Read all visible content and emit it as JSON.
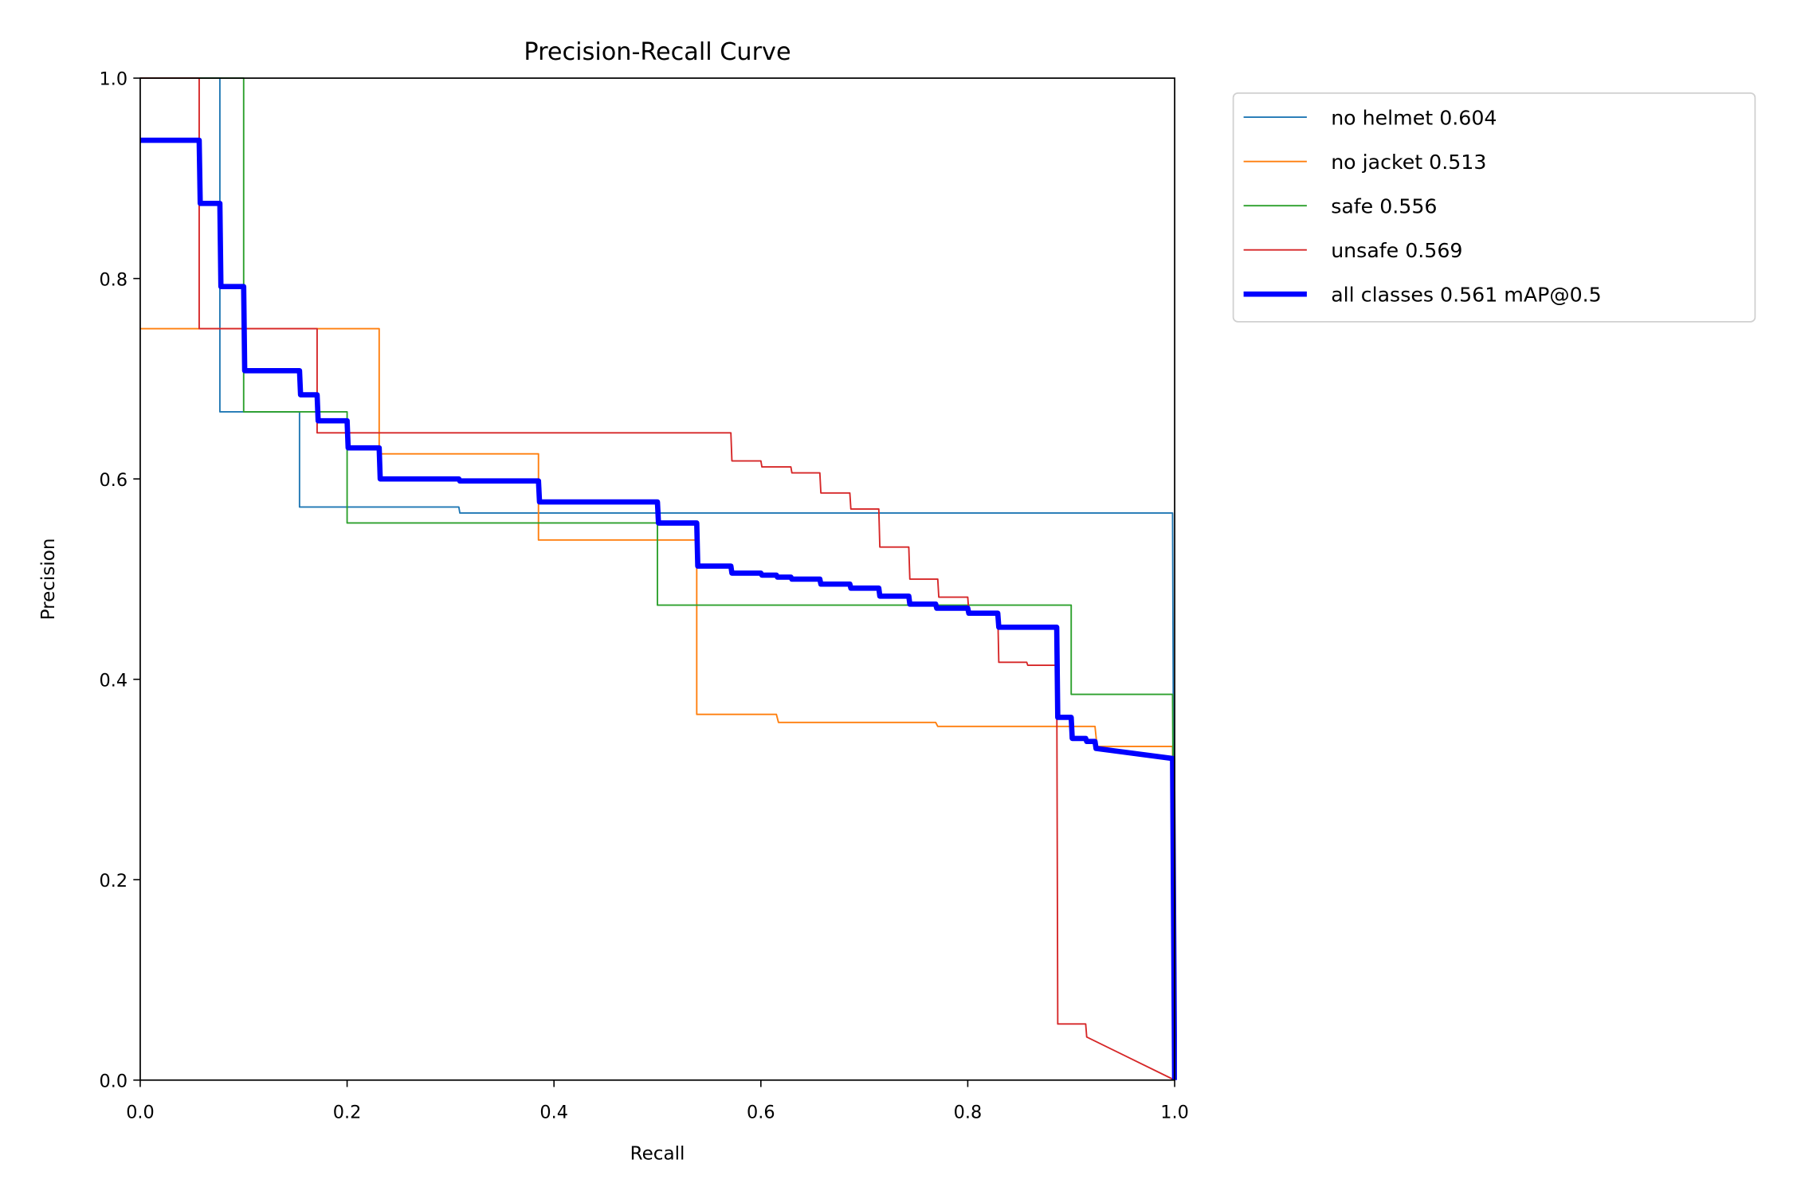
{
  "chart_data": {
    "type": "line",
    "title": "Precision-Recall Curve",
    "xlabel": "Recall",
    "ylabel": "Precision",
    "xlim": [
      0,
      1
    ],
    "ylim": [
      0,
      1
    ],
    "xticks": [
      "0.0",
      "0.2",
      "0.4",
      "0.6",
      "0.8",
      "1.0"
    ],
    "yticks": [
      "0.0",
      "0.2",
      "0.4",
      "0.6",
      "0.8",
      "1.0"
    ],
    "grid": false,
    "legend_position": "outside-top-right",
    "series": [
      {
        "name": "no helmet 0.604",
        "color": "#1f77b4",
        "bold": false,
        "points": [
          [
            0,
            1
          ],
          [
            0.077,
            1
          ],
          [
            0.077,
            0.667
          ],
          [
            0.154,
            0.667
          ],
          [
            0.154,
            0.572
          ],
          [
            0.308,
            0.572
          ],
          [
            0.309,
            0.566
          ],
          [
            0.998,
            0.566
          ],
          [
            1,
            0
          ]
        ]
      },
      {
        "name": "no jacket 0.513",
        "color": "#ff7f0e",
        "bold": false,
        "points": [
          [
            0,
            0.75
          ],
          [
            0.231,
            0.75
          ],
          [
            0.231,
            0.625
          ],
          [
            0.385,
            0.625
          ],
          [
            0.385,
            0.539
          ],
          [
            0.538,
            0.539
          ],
          [
            0.538,
            0.365
          ],
          [
            0.615,
            0.365
          ],
          [
            0.617,
            0.357
          ],
          [
            0.769,
            0.357
          ],
          [
            0.771,
            0.353
          ],
          [
            0.923,
            0.353
          ],
          [
            0.925,
            0.333
          ],
          [
            0.998,
            0.333
          ],
          [
            1,
            0
          ]
        ]
      },
      {
        "name": "safe 0.556",
        "color": "#2ca02c",
        "bold": false,
        "points": [
          [
            0,
            1
          ],
          [
            0.1,
            1
          ],
          [
            0.1,
            0.667
          ],
          [
            0.2,
            0.667
          ],
          [
            0.2,
            0.556
          ],
          [
            0.5,
            0.556
          ],
          [
            0.5,
            0.474
          ],
          [
            0.9,
            0.474
          ],
          [
            0.9,
            0.385
          ],
          [
            0.998,
            0.385
          ],
          [
            1,
            0
          ]
        ]
      },
      {
        "name": "unsafe 0.569",
        "color": "#d62728",
        "bold": false,
        "points": [
          [
            0,
            1
          ],
          [
            0.057,
            1
          ],
          [
            0.057,
            0.75
          ],
          [
            0.171,
            0.75
          ],
          [
            0.171,
            0.646
          ],
          [
            0.571,
            0.646
          ],
          [
            0.572,
            0.618
          ],
          [
            0.6,
            0.618
          ],
          [
            0.601,
            0.612
          ],
          [
            0.629,
            0.612
          ],
          [
            0.63,
            0.606
          ],
          [
            0.657,
            0.606
          ],
          [
            0.658,
            0.586
          ],
          [
            0.686,
            0.586
          ],
          [
            0.687,
            0.57
          ],
          [
            0.714,
            0.57
          ],
          [
            0.715,
            0.532
          ],
          [
            0.743,
            0.532
          ],
          [
            0.744,
            0.5
          ],
          [
            0.771,
            0.5
          ],
          [
            0.772,
            0.482
          ],
          [
            0.8,
            0.482
          ],
          [
            0.801,
            0.467
          ],
          [
            0.829,
            0.467
          ],
          [
            0.83,
            0.417
          ],
          [
            0.857,
            0.417
          ],
          [
            0.858,
            0.414
          ],
          [
            0.886,
            0.414
          ],
          [
            0.887,
            0.056
          ],
          [
            0.914,
            0.056
          ],
          [
            0.915,
            0.043
          ],
          [
            1,
            0
          ]
        ]
      },
      {
        "name": "all classes 0.561 mAP@0.5",
        "color": "#0000ff",
        "bold": true,
        "points": [
          [
            0,
            0.938
          ],
          [
            0.057,
            0.938
          ],
          [
            0.058,
            0.875
          ],
          [
            0.077,
            0.875
          ],
          [
            0.078,
            0.792
          ],
          [
            0.1,
            0.792
          ],
          [
            0.101,
            0.708
          ],
          [
            0.154,
            0.708
          ],
          [
            0.155,
            0.684
          ],
          [
            0.171,
            0.684
          ],
          [
            0.172,
            0.658
          ],
          [
            0.2,
            0.658
          ],
          [
            0.201,
            0.631
          ],
          [
            0.231,
            0.631
          ],
          [
            0.232,
            0.6
          ],
          [
            0.308,
            0.6
          ],
          [
            0.309,
            0.598
          ],
          [
            0.385,
            0.598
          ],
          [
            0.386,
            0.577
          ],
          [
            0.5,
            0.577
          ],
          [
            0.501,
            0.556
          ],
          [
            0.538,
            0.556
          ],
          [
            0.539,
            0.513
          ],
          [
            0.571,
            0.513
          ],
          [
            0.572,
            0.506
          ],
          [
            0.6,
            0.506
          ],
          [
            0.601,
            0.504
          ],
          [
            0.615,
            0.504
          ],
          [
            0.616,
            0.502
          ],
          [
            0.629,
            0.502
          ],
          [
            0.63,
            0.5
          ],
          [
            0.657,
            0.5
          ],
          [
            0.658,
            0.495
          ],
          [
            0.686,
            0.495
          ],
          [
            0.687,
            0.491
          ],
          [
            0.714,
            0.491
          ],
          [
            0.715,
            0.483
          ],
          [
            0.743,
            0.483
          ],
          [
            0.744,
            0.475
          ],
          [
            0.769,
            0.475
          ],
          [
            0.77,
            0.471
          ],
          [
            0.8,
            0.471
          ],
          [
            0.801,
            0.466
          ],
          [
            0.829,
            0.466
          ],
          [
            0.83,
            0.452
          ],
          [
            0.886,
            0.452
          ],
          [
            0.887,
            0.362
          ],
          [
            0.9,
            0.362
          ],
          [
            0.901,
            0.341
          ],
          [
            0.914,
            0.341
          ],
          [
            0.915,
            0.338
          ],
          [
            0.923,
            0.338
          ],
          [
            0.924,
            0.331
          ],
          [
            0.998,
            0.321
          ],
          [
            1,
            0
          ]
        ]
      }
    ]
  }
}
